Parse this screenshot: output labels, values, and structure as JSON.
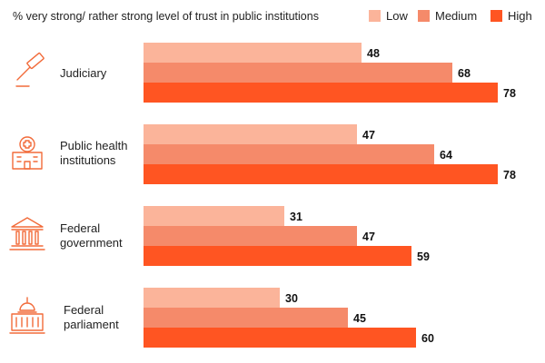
{
  "chart_data": {
    "type": "bar",
    "orientation": "horizontal",
    "title": "% very strong/ rather strong level of trust in public institutions",
    "categories": [
      {
        "lines": [
          "Judiciary"
        ],
        "icon": "gavel-icon"
      },
      {
        "lines": [
          "Public health",
          "institutions"
        ],
        "icon": "hospital-icon"
      },
      {
        "lines": [
          "Federal",
          "government"
        ],
        "icon": "government-building-icon"
      },
      {
        "lines": [
          "Federal",
          "parliament"
        ],
        "icon": "parliament-dome-icon"
      }
    ],
    "series": [
      {
        "name": "Low",
        "color": "#fbb49a",
        "values": [
          48,
          47,
          31,
          30
        ]
      },
      {
        "name": "Medium",
        "color": "#f58a6a",
        "values": [
          68,
          64,
          47,
          45
        ]
      },
      {
        "name": "High",
        "color": "#ff5522",
        "values": [
          78,
          78,
          59,
          60
        ]
      }
    ],
    "xlim": [
      0,
      80
    ],
    "grid": false,
    "legend_position": "top-right",
    "icon_color": "#f26b3a"
  }
}
